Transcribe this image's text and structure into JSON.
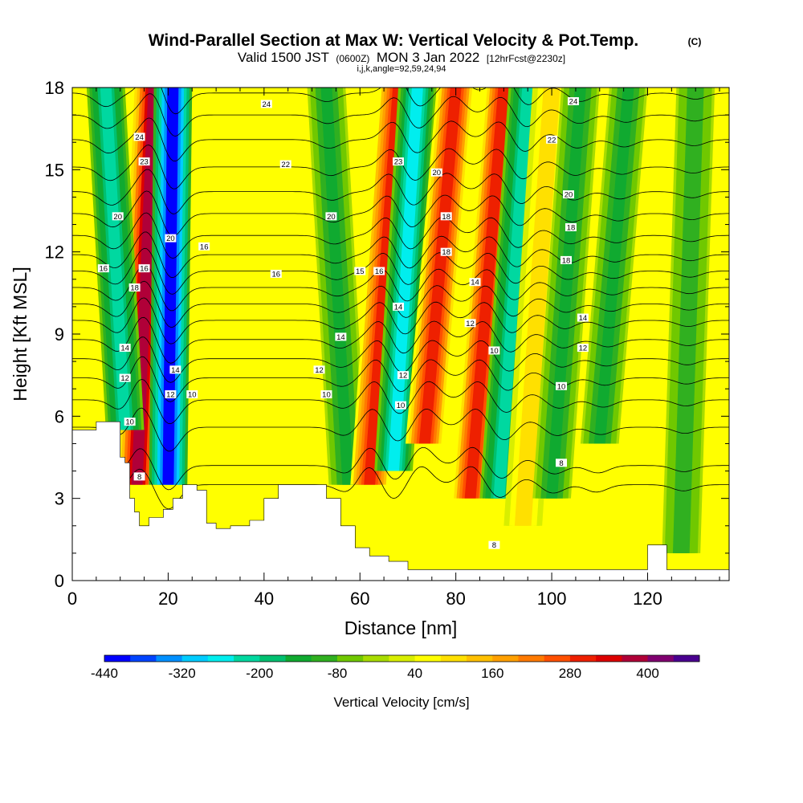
{
  "title": {
    "main": "Wind-Parallel Section at Max W: Vertical Velocity & Pot.Temp.",
    "main_suffix": "(C)",
    "line2_a": "Valid 1500 JST",
    "line2_b": "(0600Z)",
    "line2_c": "MON 3 Jan 2022",
    "line2_d": "[12hrFcst@2230z]",
    "line3": "i,j,k,angle=92,59,24,94"
  },
  "chart_data": {
    "type": "heatmap",
    "xlabel": "Distance [nm]",
    "ylabel": "Height [Kft MSL]",
    "xlim": [
      0,
      137
    ],
    "ylim": [
      0,
      18
    ],
    "x_ticks": [
      0,
      20,
      40,
      60,
      80,
      100,
      120
    ],
    "y_ticks": [
      0,
      3,
      6,
      9,
      12,
      15,
      18
    ],
    "colorbar": {
      "label": "Vertical Velocity [cm/s]",
      "tick_labels": [
        "-440",
        "-320",
        "-200",
        "-80",
        "40",
        "160",
        "280",
        "400"
      ],
      "levels": [
        -440,
        -400,
        -360,
        -320,
        -280,
        -240,
        -200,
        -160,
        -120,
        -80,
        -40,
        0,
        40,
        80,
        120,
        160,
        200,
        240,
        280,
        320,
        360,
        400,
        440
      ],
      "colors": [
        "#0000ff",
        "#0044ff",
        "#0090ff",
        "#00ccff",
        "#00eeee",
        "#00d8a0",
        "#00c070",
        "#10aa30",
        "#30b020",
        "#70c800",
        "#a8dc00",
        "#d8ee00",
        "#ffff00",
        "#ffe000",
        "#ffc000",
        "#ffa000",
        "#ff7a00",
        "#ff5000",
        "#ee2000",
        "#dd0000",
        "#b00038",
        "#800070",
        "#4a0090"
      ]
    },
    "vertical_velocity_features": [
      {
        "x": 14.5,
        "x_top": 17.0,
        "x_bottom": 13.5,
        "y_bottom": 3.5,
        "y_top": 18,
        "w": 400
      },
      {
        "x": 18.5,
        "x_top": 21.0,
        "x_bottom": 20.0,
        "y_bottom": 3.5,
        "y_top": 18,
        "w": -400
      },
      {
        "x": 11.0,
        "x_top": 7.0,
        "x_bottom": 11.0,
        "y_bottom": 5.5,
        "y_top": 18,
        "w": -220
      },
      {
        "x": 58.0,
        "x_top": 53.0,
        "x_bottom": 57.5,
        "y_bottom": 3.5,
        "y_top": 18,
        "w": -140
      },
      {
        "x": 63.0,
        "x_top": 68.0,
        "x_bottom": 62.0,
        "y_bottom": 3.5,
        "y_top": 18,
        "w": 320
      },
      {
        "x": 67.0,
        "x_top": 72.0,
        "x_bottom": 67.0,
        "y_bottom": 4.0,
        "y_top": 18,
        "w": -260
      },
      {
        "x": 75.0,
        "x_top": 80.0,
        "x_bottom": 73.5,
        "y_bottom": 5.0,
        "y_top": 18,
        "w": 300
      },
      {
        "x": 84.0,
        "x_top": 90.0,
        "x_bottom": 83.0,
        "y_bottom": 3.0,
        "y_top": 18,
        "w": 300
      },
      {
        "x": 89.5,
        "x_top": 95.0,
        "x_bottom": 89.0,
        "y_bottom": 3.0,
        "y_top": 18,
        "w": -220
      },
      {
        "x": 95.0,
        "x_top": 100.0,
        "x_bottom": 94.0,
        "y_bottom": 2.0,
        "y_top": 18,
        "w": 100
      },
      {
        "x": 101.0,
        "x_top": 106.0,
        "x_bottom": 100.0,
        "y_bottom": 3.0,
        "y_top": 18,
        "w": -140
      },
      {
        "x": 111.0,
        "x_top": 116.0,
        "x_bottom": 110.0,
        "y_bottom": 5.0,
        "y_top": 18,
        "w": -120
      },
      {
        "x": 127.0,
        "x_top": 130.0,
        "x_bottom": 127.0,
        "y_bottom": 1.0,
        "y_top": 18,
        "w": -100
      }
    ],
    "terrain_height_kft": [
      [
        0,
        5.5
      ],
      [
        2,
        5.5
      ],
      [
        5,
        5.8
      ],
      [
        9,
        5.8
      ],
      [
        10,
        4.5
      ],
      [
        11,
        4.3
      ],
      [
        12,
        3.0
      ],
      [
        13,
        2.5
      ],
      [
        14,
        2.0
      ],
      [
        16,
        2.3
      ],
      [
        18,
        2.3
      ],
      [
        19,
        2.6
      ],
      [
        21,
        3.0
      ],
      [
        23,
        3.5
      ],
      [
        26,
        3.3
      ],
      [
        28,
        2.1
      ],
      [
        30,
        1.9
      ],
      [
        33,
        2.0
      ],
      [
        37,
        2.2
      ],
      [
        40,
        3.0
      ],
      [
        43,
        3.5
      ],
      [
        50,
        3.5
      ],
      [
        53,
        3.0
      ],
      [
        56,
        2.0
      ],
      [
        59,
        1.2
      ],
      [
        62,
        0.9
      ],
      [
        66,
        0.7
      ],
      [
        70,
        0.4
      ],
      [
        100,
        0.4
      ],
      [
        119,
        0.4
      ],
      [
        120,
        1.3
      ],
      [
        123,
        1.3
      ],
      [
        124,
        0.4
      ],
      [
        137,
        0.4
      ]
    ],
    "theta_contours": [
      {
        "value": 8,
        "base_y": 3.5
      },
      {
        "value": 9,
        "base_y": 4.2
      },
      {
        "value": 10,
        "base_y": 5.6
      },
      {
        "value": 11,
        "base_y": 6.6
      },
      {
        "value": 12,
        "base_y": 7.4
      },
      {
        "value": 13,
        "base_y": 8.1
      },
      {
        "value": 14,
        "base_y": 8.8
      },
      {
        "value": 15,
        "base_y": 9.5
      },
      {
        "value": 16,
        "base_y": 10.1
      },
      {
        "value": 17,
        "base_y": 10.7
      },
      {
        "value": 18,
        "base_y": 11.3
      },
      {
        "value": 19,
        "base_y": 11.9
      },
      {
        "value": 20,
        "base_y": 12.6
      },
      {
        "value": 21,
        "base_y": 13.4
      },
      {
        "value": 22,
        "base_y": 14.2
      },
      {
        "value": 23,
        "base_y": 15.1
      },
      {
        "value": 24,
        "base_y": 16.1
      },
      {
        "value": 25,
        "base_y": 17.0
      },
      {
        "value": 26,
        "base_y": 17.8
      }
    ],
    "contour_labels": [
      {
        "text": "24",
        "x": 40.5,
        "y": 17.4
      },
      {
        "text": "24",
        "x": 104.5,
        "y": 17.5
      },
      {
        "text": "24",
        "x": 14.0,
        "y": 16.2
      },
      {
        "text": "23",
        "x": 15.0,
        "y": 15.3
      },
      {
        "text": "22",
        "x": 44.5,
        "y": 15.2
      },
      {
        "text": "23",
        "x": 68.0,
        "y": 15.3
      },
      {
        "text": "20",
        "x": 76.0,
        "y": 14.9
      },
      {
        "text": "22",
        "x": 100.0,
        "y": 16.1
      },
      {
        "text": "20",
        "x": 103.5,
        "y": 14.1
      },
      {
        "text": "20",
        "x": 9.5,
        "y": 13.3
      },
      {
        "text": "20",
        "x": 20.5,
        "y": 12.5
      },
      {
        "text": "16",
        "x": 27.5,
        "y": 12.2
      },
      {
        "text": "20",
        "x": 54.0,
        "y": 13.3
      },
      {
        "text": "18",
        "x": 78.0,
        "y": 13.3
      },
      {
        "text": "18",
        "x": 104.0,
        "y": 12.9
      },
      {
        "text": "18",
        "x": 78.0,
        "y": 12.0
      },
      {
        "text": "18",
        "x": 103.0,
        "y": 11.7
      },
      {
        "text": "16",
        "x": 6.5,
        "y": 11.4
      },
      {
        "text": "16",
        "x": 15.0,
        "y": 11.4
      },
      {
        "text": "16",
        "x": 42.5,
        "y": 11.2
      },
      {
        "text": "15",
        "x": 60.0,
        "y": 11.3
      },
      {
        "text": "16",
        "x": 64.0,
        "y": 11.3
      },
      {
        "text": "14",
        "x": 84.0,
        "y": 10.9
      },
      {
        "text": "18",
        "x": 13.0,
        "y": 10.7
      },
      {
        "text": "14",
        "x": 68.0,
        "y": 10.0
      },
      {
        "text": "14",
        "x": 106.5,
        "y": 9.6
      },
      {
        "text": "12",
        "x": 83.0,
        "y": 9.4
      },
      {
        "text": "14",
        "x": 56.0,
        "y": 8.9
      },
      {
        "text": "14",
        "x": 11.0,
        "y": 8.5
      },
      {
        "text": "12",
        "x": 106.5,
        "y": 8.5
      },
      {
        "text": "10",
        "x": 88.0,
        "y": 8.4
      },
      {
        "text": "12",
        "x": 51.5,
        "y": 7.7
      },
      {
        "text": "14",
        "x": 21.5,
        "y": 7.7
      },
      {
        "text": "12",
        "x": 11.0,
        "y": 7.4
      },
      {
        "text": "12",
        "x": 69.0,
        "y": 7.5
      },
      {
        "text": "10",
        "x": 102.0,
        "y": 7.1
      },
      {
        "text": "10",
        "x": 25.0,
        "y": 6.8
      },
      {
        "text": "12",
        "x": 20.5,
        "y": 6.8
      },
      {
        "text": "10",
        "x": 53.0,
        "y": 6.8
      },
      {
        "text": "10",
        "x": 68.5,
        "y": 6.4
      },
      {
        "text": "10",
        "x": 12.0,
        "y": 5.8
      },
      {
        "text": "8",
        "x": 102.0,
        "y": 4.3
      },
      {
        "text": "8",
        "x": 14.0,
        "y": 3.8
      },
      {
        "text": "8",
        "x": 88.0,
        "y": 1.3
      }
    ]
  }
}
